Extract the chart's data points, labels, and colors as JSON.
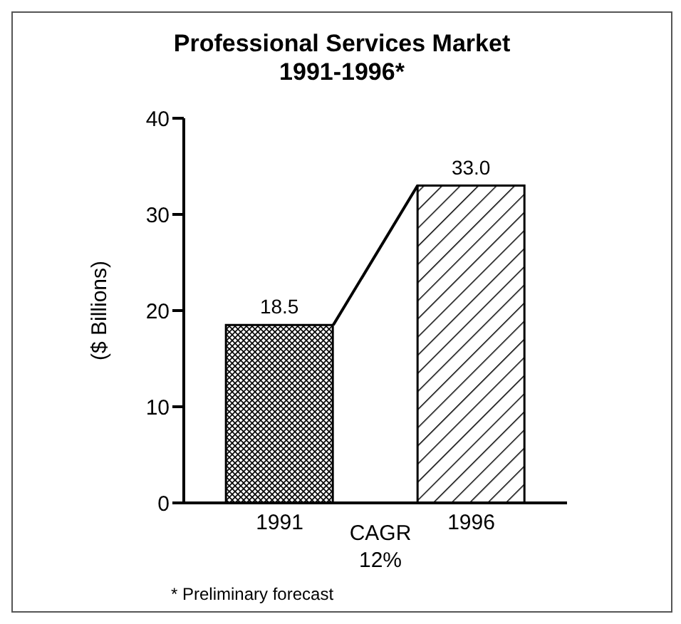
{
  "chart_data": {
    "type": "bar",
    "title": "Professional Services Market\n1991-1996*",
    "ylabel": "($ Billions)",
    "categories": [
      "1991",
      "1996"
    ],
    "values": [
      18.5,
      33.0
    ],
    "colors": [
      "#000000",
      "#000000"
    ],
    "value_labels": [
      "18.5",
      "33.0"
    ],
    "ylim": [
      0,
      40
    ],
    "yticks": [
      0,
      10,
      20,
      30,
      40
    ],
    "annotations": [
      "CAGR\n12%",
      "* Preliminary forecast"
    ]
  }
}
